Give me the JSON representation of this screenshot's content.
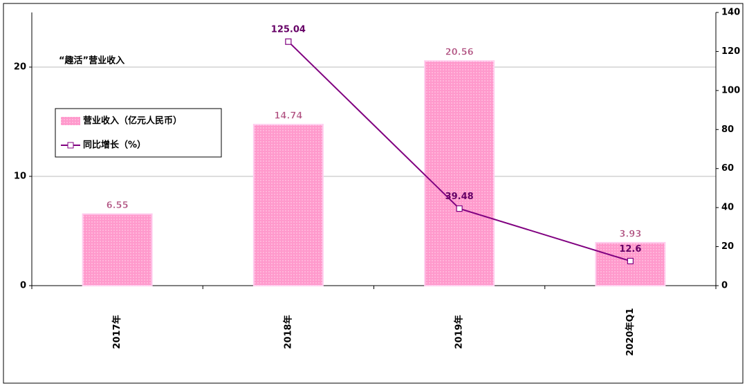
{
  "chart_data": {
    "type": "bar-line",
    "annotation": "“趣活”营业收入",
    "categories": [
      "2017年",
      "2018年",
      "2019年",
      "2020年Q1"
    ],
    "series": [
      {
        "name": "营业收入（亿元人民币）",
        "type": "bar",
        "color": "#ff99cc",
        "values": [
          6.55,
          14.74,
          20.56,
          3.93
        ]
      },
      {
        "name": "同比增长（%）",
        "type": "line",
        "axis": "y2",
        "color": "#800080",
        "values": [
          null,
          125.04,
          39.48,
          12.6
        ]
      }
    ],
    "ylim": [
      0,
      25
    ],
    "yticks": [
      0,
      10,
      20
    ],
    "y2lim": [
      0,
      140
    ],
    "y2ticks": [
      0,
      20,
      40,
      60,
      80,
      100,
      120,
      140
    ],
    "grid": true
  }
}
